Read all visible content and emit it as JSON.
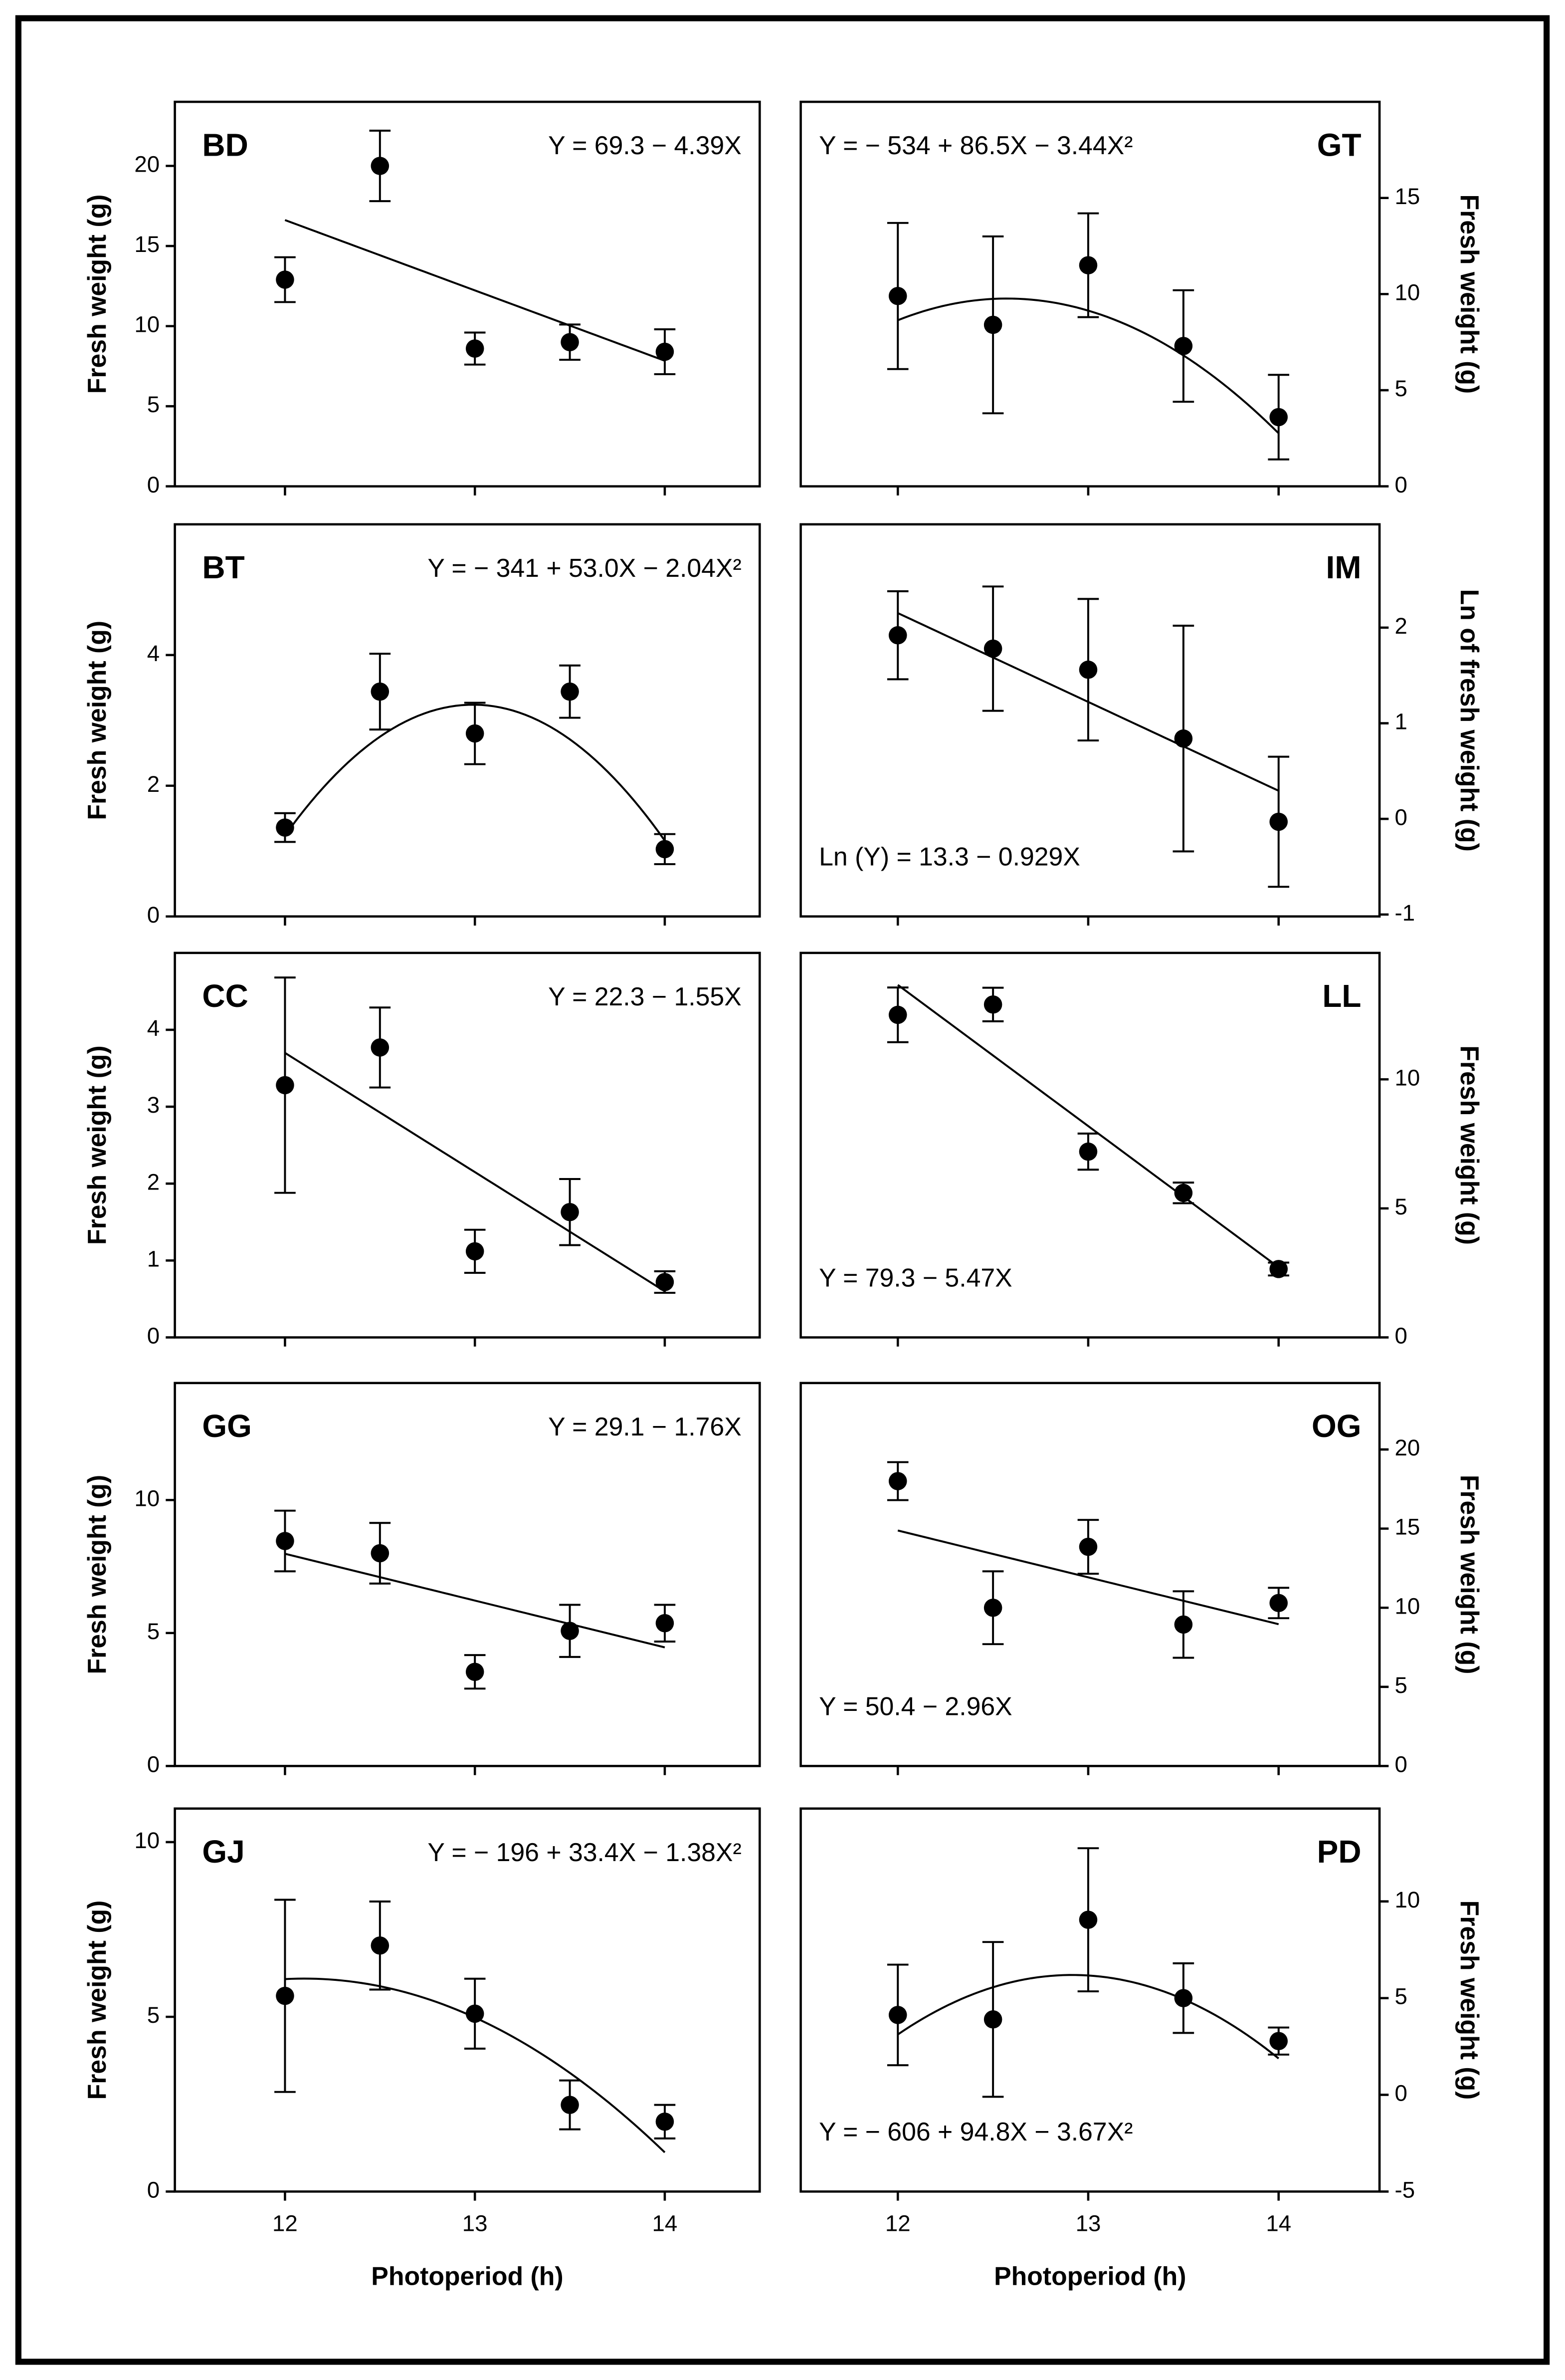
{
  "chart_data": [
    {
      "type": "scatter",
      "title": "BD",
      "equation": "Y = 69.3 − 4.39X",
      "fit_coefficients": [
        69.3,
        -4.39
      ],
      "ylabel": "Fresh weight (g)",
      "y_axis_side": "left",
      "title_position": "top-left",
      "equation_position": "top-right",
      "x": [
        12,
        12.5,
        13,
        13.5,
        14
      ],
      "values": [
        12.9,
        20,
        8.6,
        9.0,
        8.4
      ],
      "errors": [
        1.4,
        2.2,
        1.0,
        1.1,
        1.4
      ],
      "xlim": [
        11.42,
        14.5
      ],
      "xticks": [
        12,
        13,
        14
      ],
      "ylim": [
        0,
        24
      ],
      "yticks": [
        0,
        5,
        10,
        15,
        20
      ]
    },
    {
      "type": "scatter",
      "title": "GT",
      "equation": "Y = − 534 + 86.5X − 3.44X²",
      "fit_coefficients": [
        -534,
        86.5,
        -3.44
      ],
      "ylabel": "Fresh weight (g)",
      "y_axis_side": "right",
      "title_position": "top-right",
      "equation_position": "top-left",
      "x": [
        12,
        12.5,
        13,
        13.5,
        14
      ],
      "values": [
        9.9,
        8.4,
        11.5,
        7.3,
        3.6
      ],
      "errors": [
        3.8,
        4.6,
        2.7,
        2.9,
        2.2
      ],
      "xlim": [
        11.49,
        14.53
      ],
      "xticks": [
        12,
        13,
        14
      ],
      "ylim": [
        0,
        20
      ],
      "yticks": [
        0,
        5,
        10,
        15
      ]
    },
    {
      "type": "scatter",
      "title": "BT",
      "equation": "Y = − 341 + 53.0X − 2.04X²",
      "fit_coefficients": [
        -341,
        53.0,
        -2.04
      ],
      "ylabel": "Fresh weight (g)",
      "y_axis_side": "left",
      "title_position": "top-left",
      "equation_position": "top-right",
      "x": [
        12,
        12.5,
        13,
        13.5,
        14
      ],
      "values": [
        1.36,
        3.44,
        2.8,
        3.44,
        1.03
      ],
      "errors": [
        0.22,
        0.58,
        0.47,
        0.4,
        0.23
      ],
      "xlim": [
        11.42,
        14.5
      ],
      "xticks": [
        12,
        13,
        14
      ],
      "ylim": [
        0,
        6
      ],
      "yticks": [
        0,
        2,
        4
      ]
    },
    {
      "type": "scatter",
      "title": "IM",
      "equation": "Ln (Y) = 13.3 − 0.929X",
      "fit_coefficients": [
        13.3,
        -0.929
      ],
      "ylabel": "Ln of fresh weight (g)",
      "y_axis_side": "right",
      "title_position": "top-right",
      "equation_position": "bottom-left",
      "x": [
        12,
        12.5,
        13,
        13.5,
        14
      ],
      "values": [
        1.92,
        1.78,
        1.56,
        0.84,
        -0.03
      ],
      "errors": [
        0.46,
        0.65,
        0.74,
        1.18,
        0.68
      ],
      "xlim": [
        11.49,
        14.53
      ],
      "xticks": [
        12,
        13,
        14
      ],
      "ylim": [
        -1.02,
        3.08
      ],
      "yticks": [
        -1,
        0,
        1,
        2
      ]
    },
    {
      "type": "scatter",
      "title": "CC",
      "equation": "Y = 22.3 − 1.55X",
      "fit_coefficients": [
        22.3,
        -1.55
      ],
      "ylabel": "Fresh weight (g)",
      "y_axis_side": "left",
      "title_position": "top-left",
      "equation_position": "top-right",
      "x": [
        12,
        12.5,
        13,
        13.5,
        14
      ],
      "values": [
        3.28,
        3.77,
        1.12,
        1.63,
        0.72
      ],
      "errors": [
        1.4,
        0.52,
        0.28,
        0.43,
        0.14
      ],
      "xlim": [
        11.42,
        14.5
      ],
      "xticks": [
        12,
        13,
        14
      ],
      "ylim": [
        0,
        5
      ],
      "yticks": [
        0,
        1,
        2,
        3,
        4
      ]
    },
    {
      "type": "scatter",
      "title": "LL",
      "equation": "Y = 79.3 − 5.47X",
      "fit_coefficients": [
        79.3,
        -5.47
      ],
      "ylabel": "Fresh weight (g)",
      "y_axis_side": "right",
      "title_position": "top-right",
      "equation_position": "bottom-left",
      "x": [
        12,
        12.5,
        13,
        13.5,
        14
      ],
      "values": [
        12.5,
        12.9,
        7.2,
        5.6,
        2.65
      ],
      "errors": [
        1.06,
        0.65,
        0.7,
        0.4,
        0.25
      ],
      "xlim": [
        11.49,
        14.53
      ],
      "xticks": [
        12,
        13,
        14
      ],
      "ylim": [
        0,
        14.9
      ],
      "yticks": [
        0,
        5,
        10
      ]
    },
    {
      "type": "scatter",
      "title": "GG",
      "equation": "Y = 29.1 − 1.76X",
      "fit_coefficients": [
        29.1,
        -1.76
      ],
      "ylabel": "Fresh weight (g)",
      "y_axis_side": "left",
      "title_position": "top-left",
      "equation_position": "top-right",
      "x": [
        12,
        12.5,
        13,
        13.5,
        14
      ],
      "values": [
        8.46,
        8.0,
        3.54,
        5.08,
        5.37
      ],
      "errors": [
        1.14,
        1.14,
        0.63,
        0.98,
        0.69
      ],
      "xlim": [
        11.42,
        14.5
      ],
      "xticks": [
        12,
        13,
        14
      ],
      "ylim": [
        0,
        14.4
      ],
      "yticks": [
        0,
        5,
        10
      ]
    },
    {
      "type": "scatter",
      "title": "OG",
      "equation": "Y = 50.4 − 2.96X",
      "fit_coefficients": [
        50.4,
        -2.96
      ],
      "ylabel": "Fresh weight (g)",
      "y_axis_side": "right",
      "title_position": "top-right",
      "equation_position": "bottom-left",
      "x": [
        12,
        12.5,
        13,
        13.5,
        14
      ],
      "values": [
        18.0,
        10.0,
        13.85,
        8.94,
        10.3
      ],
      "errors": [
        1.2,
        2.3,
        1.7,
        2.1,
        0.96
      ],
      "xlim": [
        11.49,
        14.53
      ],
      "xticks": [
        12,
        13,
        14
      ],
      "ylim": [
        0,
        24.2
      ],
      "yticks": [
        0,
        5,
        10,
        15,
        20
      ]
    },
    {
      "type": "scatter",
      "title": "GJ",
      "equation": "Y = − 196 + 33.4X − 1.38X²",
      "fit_coefficients": [
        -196,
        33.4,
        -1.38
      ],
      "ylabel": "Fresh weight (g)",
      "xlabel": "Photoperiod (h)",
      "y_axis_side": "left",
      "title_position": "top-left",
      "equation_position": "top-right",
      "x": [
        12,
        12.5,
        13,
        13.5,
        14
      ],
      "values": [
        5.6,
        7.04,
        5.09,
        2.48,
        2.0
      ],
      "errors": [
        2.75,
        1.26,
        1.0,
        0.7,
        0.48
      ],
      "xlim": [
        11.42,
        14.5
      ],
      "xticks": [
        12,
        13,
        14
      ],
      "ylim": [
        0,
        10.96
      ],
      "yticks": [
        0,
        5,
        10
      ]
    },
    {
      "type": "scatter",
      "title": "PD",
      "equation": "Y = − 606 + 94.8X − 3.67X²",
      "fit_coefficients": [
        -606,
        94.8,
        -3.67
      ],
      "ylabel": "Fresh weight (g)",
      "xlabel": "Photoperiod (h)",
      "y_axis_side": "right",
      "title_position": "top-right",
      "equation_position": "bottom-left",
      "x": [
        12,
        12.5,
        13,
        13.5,
        14
      ],
      "values": [
        4.13,
        3.9,
        9.05,
        5.0,
        2.78
      ],
      "errors": [
        2.6,
        4.0,
        3.7,
        1.8,
        0.7
      ],
      "xlim": [
        11.49,
        14.53
      ],
      "xticks": [
        12,
        13,
        14
      ],
      "ylim": [
        -5,
        14.8
      ],
      "yticks": [
        -5,
        0,
        5,
        10
      ]
    }
  ]
}
